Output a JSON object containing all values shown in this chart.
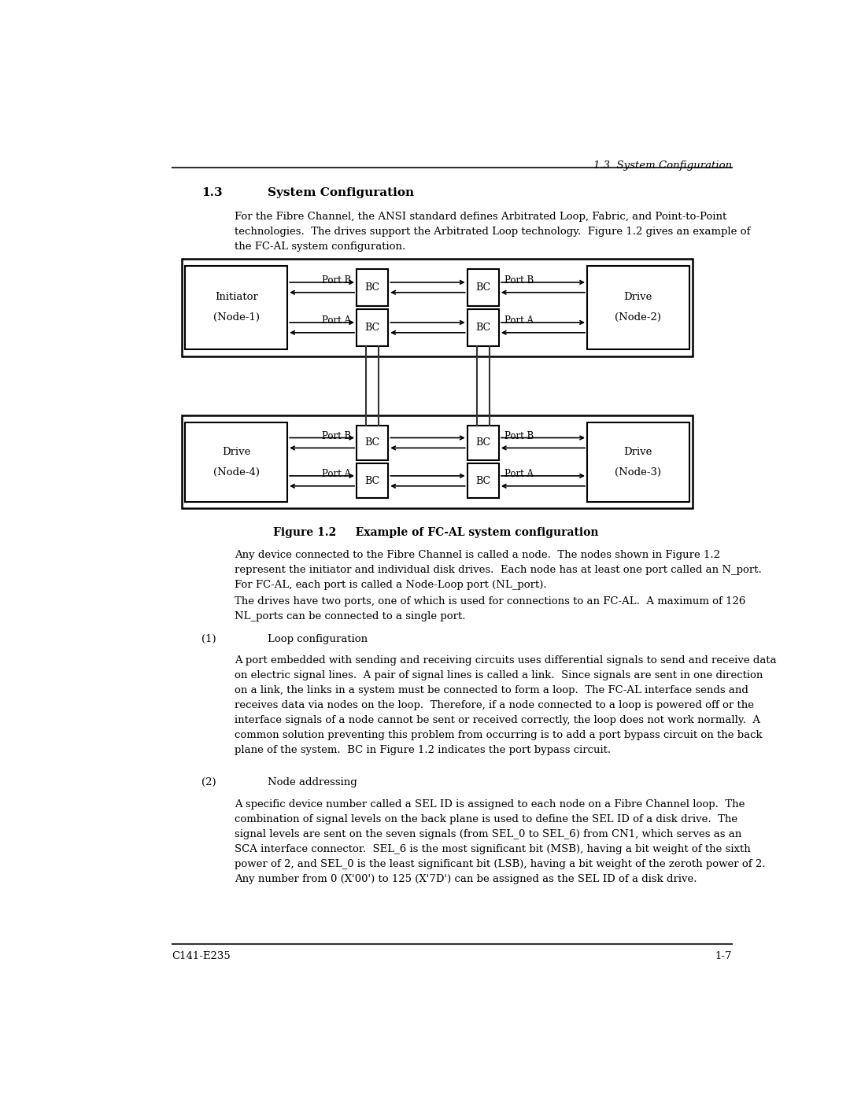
{
  "page_header": "1.3  System Configuration",
  "section_number": "1.3",
  "section_title": "System Configuration",
  "para1": "For the Fibre Channel, the ANSI standard defines Arbitrated Loop, Fabric, and Point-to-Point\ntechnologies.  The drives support the Arbitrated Loop technology.  Figure 1.2 gives an example of\nthe FC-AL system configuration.",
  "figure_caption": "Figure 1.2     Example of FC-AL system configuration",
  "para2": "Any device connected to the Fibre Channel is called a node.  The nodes shown in Figure 1.2\nrepresent the initiator and individual disk drives.  Each node has at least one port called an N_port.\nFor FC-AL, each port is called a Node-Loop port (NL_port).",
  "para3": "The drives have two ports, one of which is used for connections to an FC-AL.  A maximum of 126\nNL_ports can be connected to a single port.",
  "item1_num": "(1)",
  "item1_title": "Loop configuration",
  "item1_body": "A port embedded with sending and receiving circuits uses differential signals to send and receive data\non electric signal lines.  A pair of signal lines is called a link.  Since signals are sent in one direction\non a link, the links in a system must be connected to form a loop.  The FC-AL interface sends and\nreceives data via nodes on the loop.  Therefore, if a node connected to a loop is powered off or the\ninterface signals of a node cannot be sent or received correctly, the loop does not work normally.  A\ncommon solution preventing this problem from occurring is to add a port bypass circuit on the back\nplane of the system.  BC in Figure 1.2 indicates the port bypass circuit.",
  "item2_num": "(2)",
  "item2_title": "Node addressing",
  "item2_body": "A specific device number called a SEL ID is assigned to each node on a Fibre Channel loop.  The\ncombination of signal levels on the back plane is used to define the SEL ID of a disk drive.  The\nsignal levels are sent on the seven signals (from SEL_0 to SEL_6) from CN1, which serves as an\nSCA interface connector.  SEL_6 is the most significant bit (MSB), having a bit weight of the sixth\npower of 2, and SEL_0 is the least significant bit (LSB), having a bit weight of the zeroth power of 2.\nAny number from 0 (X'00') to 125 (X'7D') can be assigned as the SEL ID of a disk drive.",
  "footer_left": "C141-E235",
  "footer_right": "1-7",
  "bg_color": "#ffffff",
  "text_color": "#000000"
}
